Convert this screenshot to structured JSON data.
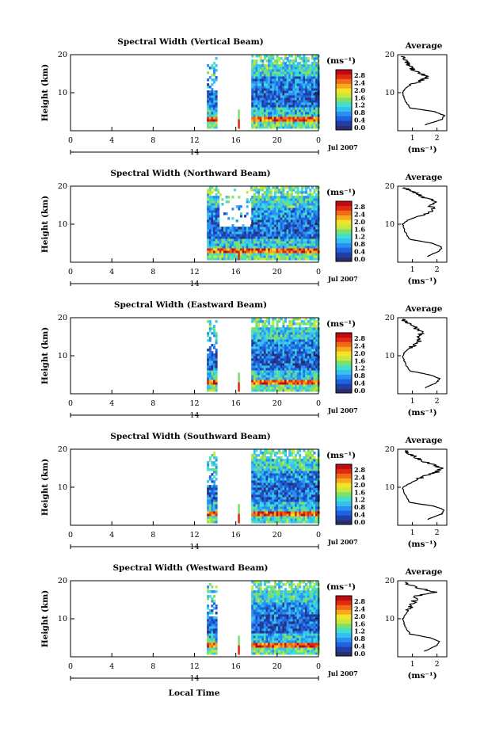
{
  "colors": {
    "colormap": [
      "#2b2e6e",
      "#1f3ea8",
      "#1f62e0",
      "#2a8ff2",
      "#35c0f0",
      "#3fe0d0",
      "#7de06a",
      "#c8e83c",
      "#f5e02a",
      "#f7a91e",
      "#f06a18",
      "#e02a12",
      "#c00c10"
    ]
  },
  "common": {
    "time_ticks": [
      "0",
      "4",
      "8",
      "12",
      "16",
      "20",
      "0"
    ],
    "date_tick": "14",
    "date_label": "Jul 2007",
    "height_ticks": [
      "20",
      "10"
    ],
    "ylabel": "Height (km)",
    "unit": "(ms⁻¹)",
    "cbar_ticks": [
      "2.8",
      "2.4",
      "2.0",
      "1.6",
      "1.2",
      "0.8",
      "0.4",
      "0.0"
    ],
    "avg_title": "Average",
    "avg_xlabel": "(ms⁻¹)",
    "xlabel": "Local Time"
  },
  "chart_data": [
    {
      "type": "heatmap",
      "title": "Spectral Width (Vertical Beam)",
      "xlabel": "",
      "ylabel": "Height (km)",
      "xlim_hours": [
        0,
        24
      ],
      "ylim_km": [
        0,
        20
      ],
      "data_gaps_hours": [
        [
          0,
          13.2
        ],
        [
          14.2,
          17.5
        ]
      ],
      "colorbar": {
        "label": "(ms⁻¹)",
        "range": [
          0,
          3.0
        ],
        "ticks": [
          0.0,
          0.4,
          0.8,
          1.2,
          1.6,
          2.0,
          2.4,
          2.8
        ]
      },
      "average_profile": {
        "xticks": [
          "1",
          "2"
        ],
        "xlim": [
          0.4,
          2.4
        ],
        "height_km": [
          1.5,
          3,
          4,
          5,
          6,
          8,
          10,
          11,
          12,
          13,
          14,
          15,
          16,
          17,
          18,
          19,
          19.6
        ],
        "value": [
          1.5,
          2.2,
          2.3,
          1.9,
          0.9,
          0.7,
          0.6,
          0.7,
          0.9,
          1.3,
          1.6,
          1.4,
          1.0,
          0.9,
          0.8,
          0.6,
          0.6
        ]
      }
    },
    {
      "type": "heatmap",
      "title": "Spectral Width (Northward Beam)",
      "xlabel": "",
      "ylabel": "Height (km)",
      "xlim_hours": [
        0,
        24
      ],
      "ylim_km": [
        0,
        20
      ],
      "data_gaps_hours": [
        [
          0,
          13.2
        ],
        [
          17.5,
          17.6
        ]
      ],
      "colorbar": {
        "label": "(ms⁻¹)",
        "range": [
          0,
          3.0
        ],
        "ticks": [
          0.0,
          0.4,
          0.8,
          1.2,
          1.6,
          2.0,
          2.4,
          2.8
        ]
      },
      "average_profile": {
        "xticks": [
          "1",
          "2"
        ],
        "xlim": [
          0.4,
          2.4
        ],
        "height_km": [
          1.5,
          3,
          4,
          5,
          6,
          8,
          10,
          11,
          12,
          13,
          14,
          15,
          16,
          17,
          18,
          19,
          19.6
        ],
        "value": [
          1.6,
          2.1,
          2.2,
          1.8,
          0.9,
          0.7,
          0.6,
          0.8,
          1.2,
          1.6,
          1.9,
          1.7,
          2.0,
          1.5,
          1.2,
          0.8,
          0.7
        ]
      }
    },
    {
      "type": "heatmap",
      "title": "Spectral Width (Eastward Beam)",
      "xlabel": "",
      "ylabel": "Height (km)",
      "xlim_hours": [
        0,
        24
      ],
      "ylim_km": [
        0,
        20
      ],
      "data_gaps_hours": [
        [
          0,
          13.2
        ],
        [
          14.2,
          17.5
        ]
      ],
      "colorbar": {
        "label": "(ms⁻¹)",
        "range": [
          0,
          3.0
        ],
        "ticks": [
          0.0,
          0.4,
          0.8,
          1.2,
          1.6,
          2.0,
          2.4,
          2.8
        ]
      },
      "average_profile": {
        "xticks": [
          "1",
          "2"
        ],
        "xlim": [
          0.4,
          2.4
        ],
        "height_km": [
          1.5,
          3,
          4,
          5,
          6,
          8,
          10,
          11,
          12,
          13,
          14,
          15,
          16,
          17,
          18,
          19,
          19.6
        ],
        "value": [
          1.5,
          2.0,
          2.1,
          1.7,
          0.9,
          0.7,
          0.6,
          0.7,
          0.9,
          1.1,
          1.3,
          1.2,
          1.4,
          1.2,
          1.0,
          0.7,
          0.6
        ]
      }
    },
    {
      "type": "heatmap",
      "title": "Spectral Width (Southward Beam)",
      "xlabel": "",
      "ylabel": "Height (km)",
      "xlim_hours": [
        0,
        24
      ],
      "ylim_km": [
        0,
        20
      ],
      "data_gaps_hours": [
        [
          0,
          13.2
        ],
        [
          14.2,
          17.5
        ]
      ],
      "colorbar": {
        "label": "(ms⁻¹)",
        "range": [
          0,
          3.0
        ],
        "ticks": [
          0.0,
          0.4,
          0.8,
          1.2,
          1.6,
          2.0,
          2.4,
          2.8
        ]
      },
      "average_profile": {
        "xticks": [
          "1",
          "2"
        ],
        "xlim": [
          0.4,
          2.4
        ],
        "height_km": [
          1.5,
          3,
          4,
          5,
          6,
          8,
          10,
          11,
          12,
          13,
          14,
          15,
          16,
          17,
          18,
          19,
          19.6
        ],
        "value": [
          1.6,
          2.2,
          2.3,
          1.9,
          0.9,
          0.7,
          0.6,
          0.9,
          1.2,
          1.5,
          2.0,
          2.2,
          1.8,
          1.4,
          1.1,
          0.8,
          0.7
        ]
      }
    },
    {
      "type": "heatmap",
      "title": "Spectral Width (Westward Beam)",
      "xlabel": "Local Time",
      "ylabel": "Height (km)",
      "xlim_hours": [
        0,
        24
      ],
      "ylim_km": [
        0,
        20
      ],
      "data_gaps_hours": [
        [
          0,
          13.2
        ],
        [
          14.2,
          17.5
        ]
      ],
      "colorbar": {
        "label": "(ms⁻¹)",
        "range": [
          0,
          3.0
        ],
        "ticks": [
          0.0,
          0.4,
          0.8,
          1.2,
          1.6,
          2.0,
          2.4,
          2.8
        ]
      },
      "average_profile": {
        "xticks": [
          "1",
          "2"
        ],
        "xlim": [
          0.4,
          2.4
        ],
        "height_km": [
          1.5,
          3,
          4,
          5,
          6,
          8,
          10,
          11,
          12,
          13,
          14,
          15,
          16,
          17,
          18,
          19,
          19.6
        ],
        "value": [
          1.5,
          2.0,
          2.1,
          1.7,
          0.9,
          0.7,
          0.6,
          0.7,
          0.8,
          0.9,
          1.0,
          1.1,
          1.2,
          1.9,
          1.3,
          0.8,
          0.7
        ]
      }
    }
  ]
}
